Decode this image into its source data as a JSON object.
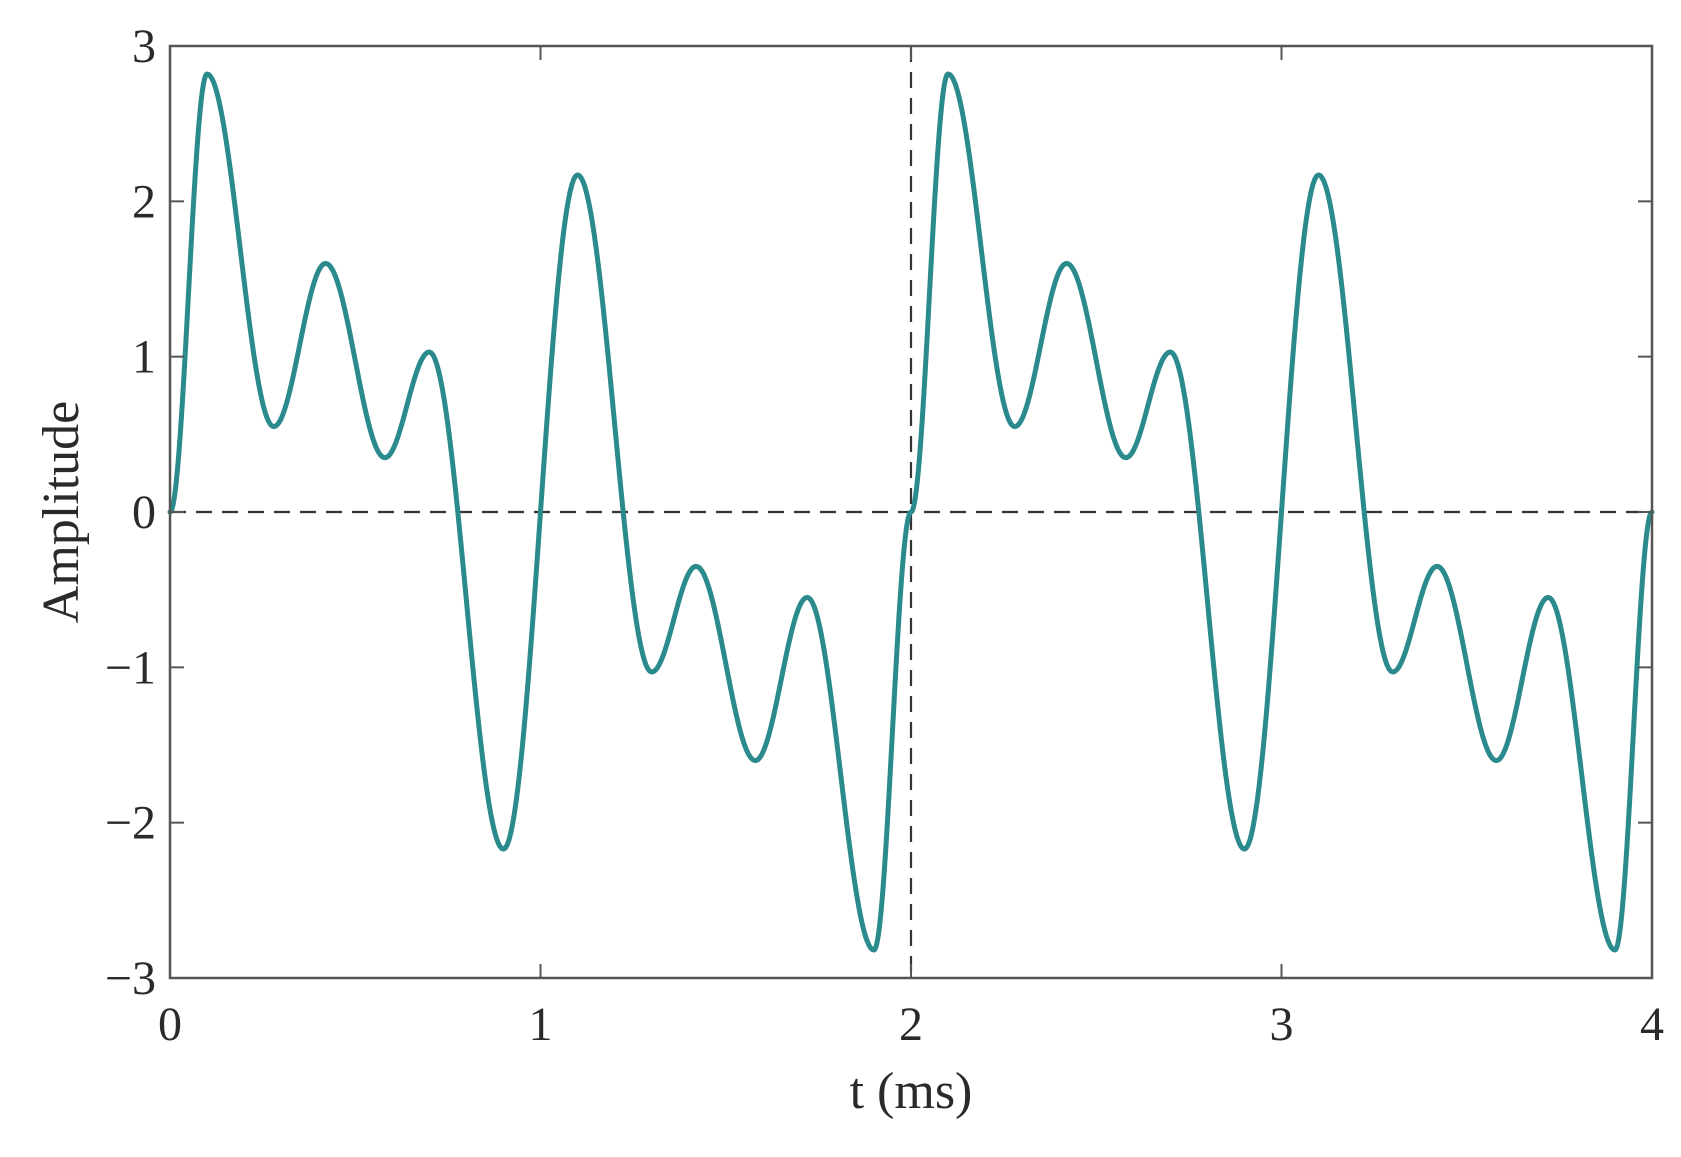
{
  "chart_data": {
    "type": "line",
    "title": "",
    "xlabel": "t (ms)",
    "ylabel": "Amplitude",
    "xlim": [
      0,
      4
    ],
    "ylim": [
      -3,
      3
    ],
    "x_ticks": [
      0,
      1,
      2,
      3,
      4
    ],
    "y_ticks": [
      3,
      2,
      1,
      0,
      -1,
      -2,
      -3
    ],
    "x_tick_labels": [
      "0",
      "1",
      "2",
      "3",
      "4"
    ],
    "y_tick_labels": [
      "3",
      "2",
      "1",
      "0",
      "−1",
      "−2",
      "−3"
    ],
    "reference_lines": [
      {
        "orientation": "horizontal",
        "value": 0,
        "style": "dashed"
      },
      {
        "orientation": "vertical",
        "value": 2,
        "style": "dashed"
      }
    ],
    "grid": false,
    "series": [
      {
        "color": "#2b8a8c",
        "x": [
          0,
          0.1,
          0.28,
          0.42,
          0.58,
          0.7,
          0.9,
          1.1,
          1.3,
          1.42,
          1.58,
          1.72,
          1.9,
          2.0,
          2.1,
          2.28,
          2.42,
          2.58,
          2.7,
          2.9,
          3.1,
          3.3,
          3.42,
          3.58,
          3.72,
          3.9,
          4.0
        ],
        "y": [
          0,
          2.82,
          0.55,
          1.6,
          0.35,
          1.03,
          -2.17,
          2.17,
          -1.03,
          -0.35,
          -1.6,
          -0.55,
          -2.82,
          0,
          2.82,
          0.55,
          1.6,
          0.35,
          1.03,
          -2.17,
          2.17,
          -1.03,
          -0.35,
          -1.6,
          -0.55,
          -2.82,
          0
        ]
      }
    ],
    "colors": {
      "line": "#2b8a8c",
      "axes": "#555555",
      "reference": "#333333"
    }
  }
}
